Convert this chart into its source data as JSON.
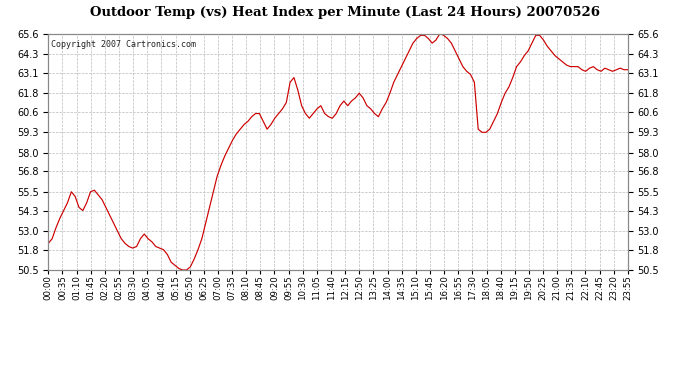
{
  "title": "Outdoor Temp (vs) Heat Index per Minute (Last 24 Hours) 20070526",
  "copyright_text": "Copyright 2007 Cartronics.com",
  "line_color": "#cc0000",
  "background_color": "#ffffff",
  "grid_color": "#bbbbbb",
  "yticks": [
    50.5,
    51.8,
    53.0,
    54.3,
    55.5,
    56.8,
    58.0,
    59.3,
    60.6,
    61.8,
    63.1,
    64.3,
    65.6
  ],
  "ylim": [
    50.5,
    65.6
  ],
  "xtick_labels": [
    "00:00",
    "00:35",
    "01:10",
    "01:45",
    "02:20",
    "02:55",
    "03:30",
    "04:05",
    "04:40",
    "05:15",
    "05:50",
    "06:25",
    "07:00",
    "07:35",
    "08:10",
    "08:45",
    "09:20",
    "09:55",
    "10:30",
    "11:05",
    "11:40",
    "12:15",
    "12:50",
    "13:25",
    "14:00",
    "14:35",
    "15:10",
    "15:45",
    "16:20",
    "16:55",
    "17:30",
    "18:05",
    "18:40",
    "19:15",
    "19:50",
    "20:25",
    "21:00",
    "21:35",
    "22:10",
    "22:45",
    "23:20",
    "23:55"
  ],
  "data_points": [
    52.2,
    52.5,
    53.2,
    53.8,
    54.3,
    54.8,
    55.5,
    55.2,
    54.5,
    54.3,
    54.8,
    55.5,
    55.6,
    55.3,
    55.0,
    54.5,
    54.0,
    53.5,
    53.0,
    52.5,
    52.2,
    52.0,
    51.9,
    52.0,
    52.5,
    52.8,
    52.5,
    52.3,
    52.0,
    51.9,
    51.8,
    51.5,
    51.0,
    50.8,
    50.6,
    50.5,
    50.5,
    50.7,
    51.2,
    51.8,
    52.5,
    53.5,
    54.5,
    55.5,
    56.5,
    57.2,
    57.8,
    58.3,
    58.8,
    59.2,
    59.5,
    59.8,
    60.0,
    60.3,
    60.5,
    60.5,
    60.0,
    59.5,
    59.8,
    60.2,
    60.5,
    60.8,
    61.2,
    62.5,
    62.8,
    62.0,
    61.0,
    60.5,
    60.2,
    60.5,
    60.8,
    61.0,
    60.5,
    60.3,
    60.2,
    60.5,
    61.0,
    61.3,
    61.0,
    61.3,
    61.5,
    61.8,
    61.5,
    61.0,
    60.8,
    60.5,
    60.3,
    60.8,
    61.2,
    61.8,
    62.5,
    63.0,
    63.5,
    64.0,
    64.5,
    65.0,
    65.3,
    65.5,
    65.5,
    65.3,
    65.0,
    65.2,
    65.6,
    65.5,
    65.3,
    65.0,
    64.5,
    64.0,
    63.5,
    63.2,
    63.0,
    62.5,
    59.5,
    59.3,
    59.3,
    59.5,
    60.0,
    60.5,
    61.2,
    61.8,
    62.2,
    62.8,
    63.5,
    63.8,
    64.2,
    64.5,
    65.0,
    65.5,
    65.5,
    65.2,
    64.8,
    64.5,
    64.2,
    64.0,
    63.8,
    63.6,
    63.5,
    63.5,
    63.5,
    63.3,
    63.2,
    63.4,
    63.5,
    63.3,
    63.2,
    63.4,
    63.3,
    63.2,
    63.3,
    63.4,
    63.3,
    63.3
  ]
}
